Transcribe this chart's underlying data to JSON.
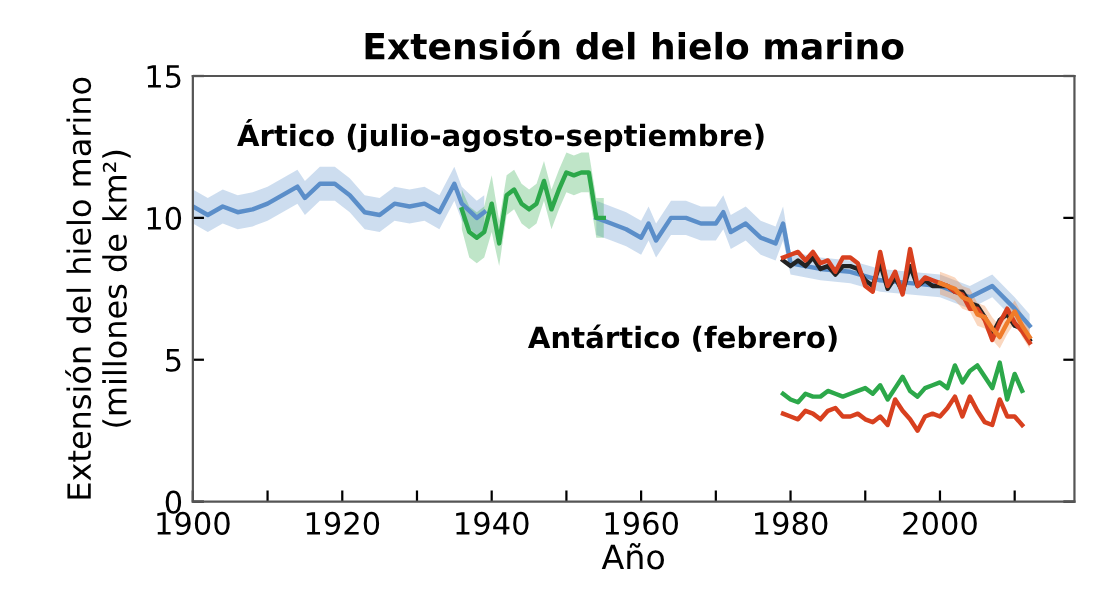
{
  "chart_data": {
    "type": "line",
    "title": "Extensión del hielo marino",
    "xlabel": "Año",
    "ylabel": "Extensión del hielo marino\n(millones de km²)",
    "xlim": [
      1900,
      2018
    ],
    "ylim": [
      0,
      15
    ],
    "xticks": [
      1900,
      {
        "value": 1910,
        "label": null
      },
      1920,
      {
        "value": 1930,
        "label": null
      },
      1940,
      {
        "value": 1950,
        "label": null
      },
      1960,
      {
        "value": 1970,
        "label": null
      },
      1980,
      {
        "value": 1990,
        "label": null
      },
      2000,
      {
        "value": 2010,
        "label": null
      }
    ],
    "yticks": [
      0,
      5,
      10,
      15
    ],
    "grid": false,
    "line_style": "solid",
    "annotations": [
      "Ártico (julio-agosto-septiembre)",
      "Antártico (febrero)"
    ],
    "series": [
      {
        "color": "#5b8ec9",
        "x": [
          1900,
          1902,
          1904,
          1906,
          1908,
          1910,
          1912,
          1914,
          1915,
          1917,
          1919,
          1921,
          1923,
          1925,
          1927,
          1929,
          1931,
          1933,
          1935,
          1936,
          1938,
          1939,
          1946,
          1954,
          1956,
          1958,
          1960,
          1961,
          1962,
          1964,
          1966,
          1968,
          1970,
          1971,
          1972,
          1974,
          1976,
          1978,
          1979,
          1980,
          1984,
          1988,
          1992,
          1996,
          2000,
          2004,
          2007,
          2010,
          2012
        ],
        "values": [
          10.4,
          10.1,
          10.4,
          10.2,
          10.3,
          10.5,
          10.8,
          11.1,
          10.7,
          11.2,
          11.2,
          10.8,
          10.2,
          10.1,
          10.5,
          10.4,
          10.5,
          10.2,
          11.2,
          10.5,
          10.0,
          10.2,
          null,
          10.0,
          9.8,
          9.6,
          9.3,
          9.8,
          9.2,
          10.0,
          10.0,
          9.8,
          9.8,
          10.2,
          9.5,
          9.8,
          9.3,
          9.1,
          9.8,
          8.4,
          8.2,
          8.1,
          7.8,
          7.7,
          7.6,
          7.2,
          7.6,
          6.8,
          6.2
        ],
        "lower": [
          9.8,
          9.5,
          9.8,
          9.6,
          9.7,
          9.9,
          10.2,
          10.5,
          10.1,
          10.6,
          10.6,
          10.2,
          9.6,
          9.5,
          9.9,
          9.8,
          9.9,
          9.6,
          10.6,
          9.9,
          9.4,
          9.6,
          null,
          9.4,
          9.2,
          9.0,
          8.7,
          9.2,
          8.6,
          9.4,
          9.4,
          9.2,
          9.2,
          9.6,
          8.9,
          9.2,
          8.7,
          8.5,
          9.2,
          8.0,
          7.8,
          7.7,
          7.4,
          7.3,
          7.2,
          6.8,
          7.2,
          6.4,
          5.8
        ],
        "upper": [
          11.0,
          10.7,
          11.0,
          10.8,
          10.9,
          11.1,
          11.4,
          11.7,
          11.3,
          11.8,
          11.8,
          11.4,
          10.8,
          10.7,
          11.1,
          11.0,
          11.1,
          10.8,
          11.8,
          11.1,
          10.6,
          10.8,
          null,
          10.6,
          10.4,
          10.2,
          9.9,
          10.4,
          9.8,
          10.6,
          10.6,
          10.4,
          10.4,
          10.8,
          10.1,
          10.4,
          9.9,
          9.7,
          10.4,
          8.8,
          8.6,
          8.5,
          8.2,
          8.1,
          8.0,
          7.6,
          8.0,
          7.2,
          6.6
        ]
      },
      {
        "color": "#2ca84a",
        "x": [
          1936,
          1937,
          1938,
          1939,
          1940,
          1941,
          1942,
          1943,
          1944,
          1945,
          1946,
          1947,
          1948,
          1949,
          1950,
          1951,
          1952,
          1953,
          1954,
          1955
        ],
        "values": [
          10.3,
          9.5,
          9.3,
          9.5,
          10.5,
          9.1,
          10.8,
          11.0,
          10.5,
          10.3,
          10.5,
          11.3,
          10.3,
          11.0,
          11.6,
          11.5,
          11.6,
          11.6,
          10.0,
          10.0
        ],
        "lower": [
          9.6,
          8.6,
          8.4,
          8.6,
          9.5,
          8.3,
          10.1,
          10.3,
          9.8,
          9.6,
          9.8,
          10.6,
          9.6,
          10.3,
          10.9,
          10.8,
          10.9,
          10.9,
          9.3,
          9.3
        ],
        "upper": [
          11.0,
          10.4,
          10.2,
          10.4,
          11.5,
          9.9,
          11.5,
          11.7,
          11.2,
          11.0,
          11.2,
          12.0,
          11.0,
          11.7,
          12.3,
          12.2,
          12.3,
          12.3,
          10.7,
          10.7
        ]
      },
      {
        "color": "#222222",
        "x": [
          1979,
          1980,
          1981,
          1982,
          1983,
          1984,
          1985,
          1986,
          1987,
          1988,
          1989,
          1990,
          1991,
          1992,
          1993,
          1994,
          1995,
          1996,
          1997,
          1998,
          1999,
          2000,
          2001,
          2002,
          2003,
          2004,
          2005,
          2006,
          2007,
          2008,
          2009,
          2010,
          2011,
          2012
        ],
        "values": [
          8.5,
          8.3,
          8.5,
          8.3,
          8.6,
          8.2,
          8.3,
          8.0,
          8.3,
          8.3,
          8.2,
          7.8,
          7.6,
          8.4,
          7.5,
          7.9,
          7.4,
          8.3,
          7.6,
          7.8,
          7.6,
          7.6,
          7.6,
          7.4,
          7.4,
          7.0,
          6.9,
          6.5,
          5.9,
          6.4,
          6.6,
          6.2,
          6.1,
          5.7
        ]
      },
      {
        "color": "#d8401f",
        "x": [
          1979,
          1980,
          1981,
          1982,
          1983,
          1984,
          1985,
          1986,
          1987,
          1988,
          1989,
          1990,
          1991,
          1992,
          1993,
          1994,
          1995,
          1996,
          1997,
          1998,
          1999,
          2000,
          2001,
          2002,
          2003,
          2004,
          2005,
          2006,
          2007,
          2008,
          2009,
          2010,
          2011,
          2012
        ],
        "values": [
          8.6,
          8.7,
          8.8,
          8.5,
          8.8,
          8.4,
          8.5,
          8.1,
          8.6,
          8.6,
          8.4,
          7.6,
          7.4,
          8.8,
          7.6,
          8.1,
          7.3,
          8.9,
          7.6,
          7.9,
          7.8,
          7.7,
          7.6,
          7.4,
          7.3,
          6.8,
          6.8,
          6.4,
          5.7,
          6.3,
          6.8,
          6.3,
          6.0,
          5.6
        ]
      },
      {
        "color": "#f07c2a",
        "x": [
          2000,
          2001,
          2002,
          2003,
          2004,
          2005,
          2006,
          2007,
          2008,
          2009,
          2010,
          2011,
          2012
        ],
        "values": [
          7.7,
          7.6,
          7.5,
          7.2,
          7.1,
          6.6,
          6.5,
          6.1,
          5.8,
          6.3,
          6.7,
          6.2,
          5.8
        ],
        "lower": [
          7.3,
          7.2,
          7.1,
          6.8,
          6.7,
          6.2,
          6.1,
          5.7,
          5.4,
          5.9,
          6.3,
          5.8,
          5.4
        ],
        "upper": [
          8.1,
          8.0,
          7.9,
          7.6,
          7.5,
          7.0,
          6.9,
          6.5,
          6.2,
          6.7,
          7.1,
          6.6,
          6.2
        ]
      },
      {
        "color": "#2ca84a",
        "x": [
          1979,
          1980,
          1981,
          1982,
          1983,
          1984,
          1985,
          1986,
          1987,
          1988,
          1989,
          1990,
          1991,
          1992,
          1993,
          1994,
          1995,
          1996,
          1997,
          1998,
          1999,
          2000,
          2001,
          2002,
          2003,
          2004,
          2005,
          2006,
          2007,
          2008,
          2009,
          2010,
          2011
        ],
        "values": [
          3.8,
          3.6,
          3.5,
          3.8,
          3.7,
          3.7,
          3.9,
          3.8,
          3.7,
          3.8,
          3.9,
          4.0,
          3.8,
          4.1,
          3.6,
          4.0,
          4.4,
          3.9,
          3.7,
          4.0,
          4.1,
          4.2,
          4.0,
          4.8,
          4.2,
          4.6,
          4.8,
          4.4,
          4.0,
          4.9,
          3.6,
          4.5,
          3.9
        ]
      },
      {
        "color": "#d8401f",
        "x": [
          1979,
          1980,
          1981,
          1982,
          1983,
          1984,
          1985,
          1986,
          1987,
          1988,
          1989,
          1990,
          1991,
          1992,
          1993,
          1994,
          1995,
          1996,
          1997,
          1998,
          1999,
          2000,
          2001,
          2002,
          2003,
          2004,
          2005,
          2006,
          2007,
          2008,
          2009,
          2010,
          2011
        ],
        "values": [
          3.1,
          3.0,
          2.9,
          3.2,
          3.1,
          2.9,
          3.2,
          3.3,
          3.0,
          3.0,
          3.1,
          2.9,
          2.8,
          3.0,
          2.7,
          3.6,
          3.2,
          2.9,
          2.5,
          3.0,
          3.1,
          3.0,
          3.3,
          3.7,
          3.0,
          3.7,
          3.2,
          2.8,
          2.7,
          3.6,
          3.0,
          3.0,
          2.7
        ]
      }
    ]
  }
}
